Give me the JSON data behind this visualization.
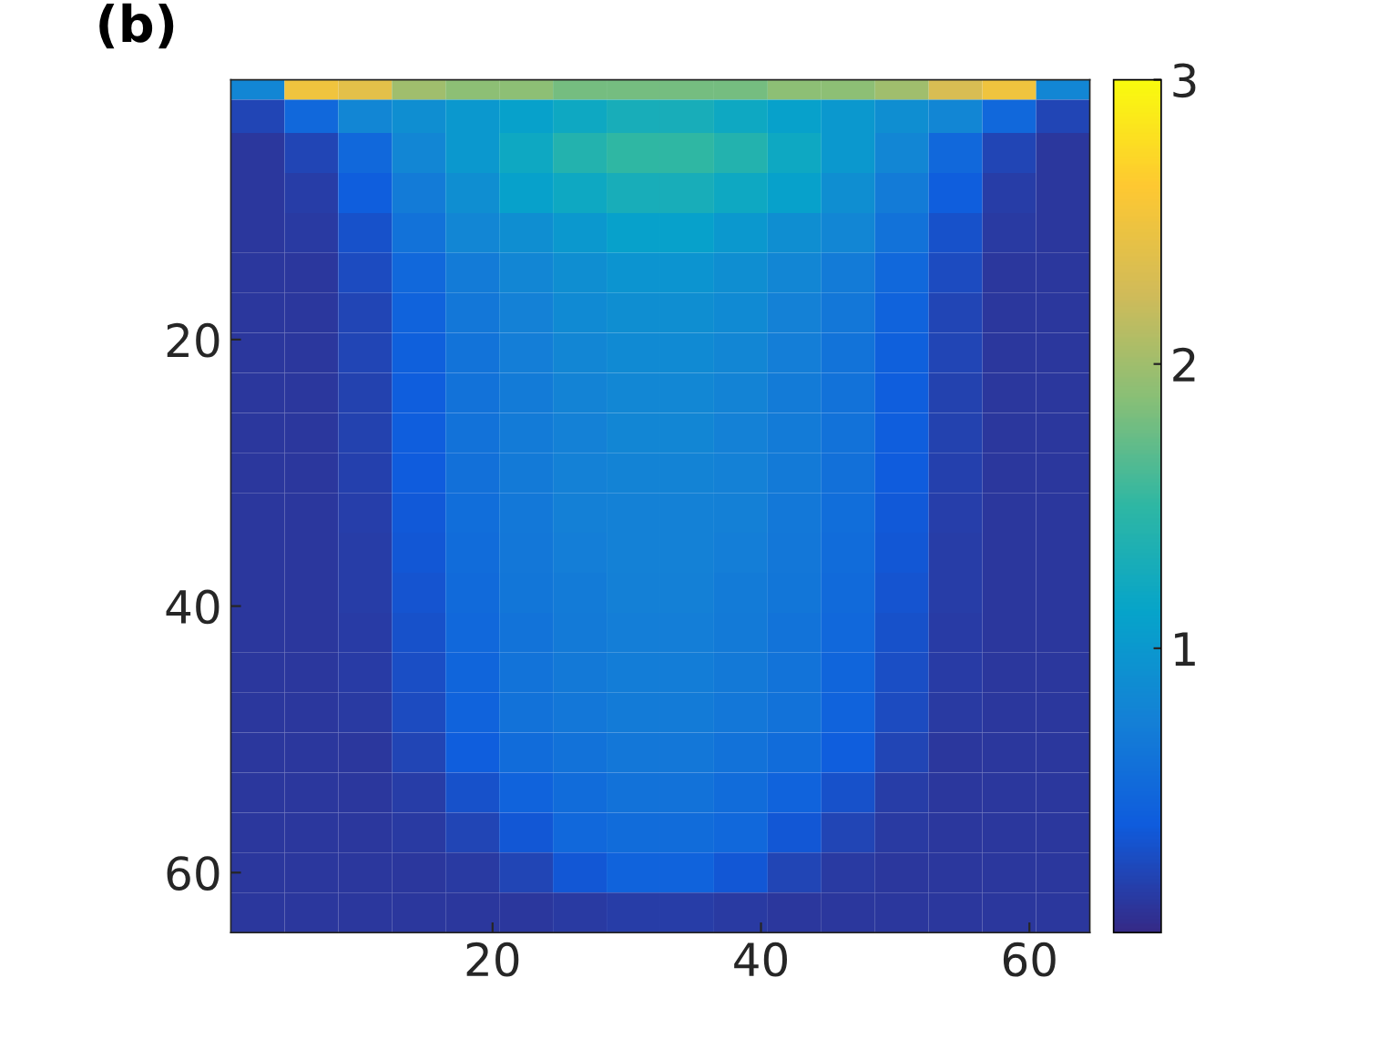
{
  "chart_data": {
    "type": "heatmap",
    "title": "(b)",
    "x": [
      2.5,
      6.5,
      10.5,
      14.5,
      18.5,
      22.5,
      26.5,
      30.5,
      34.5,
      38.5,
      42.5,
      46.5,
      50.5,
      54.5,
      58.5,
      62.5
    ],
    "y": [
      1,
      3,
      6,
      9,
      12,
      15,
      18,
      21,
      24,
      27,
      30,
      33,
      36,
      39,
      42,
      45,
      48,
      51,
      54,
      57,
      60,
      63
    ],
    "cells": [
      [
        0.8,
        2.5,
        2.4,
        2.0,
        1.9,
        1.9,
        1.8,
        1.8,
        1.8,
        1.8,
        1.9,
        1.9,
        2.0,
        2.3,
        2.5,
        0.8
      ],
      [
        0.2,
        0.5,
        0.8,
        0.9,
        1.0,
        1.1,
        1.2,
        1.3,
        1.3,
        1.2,
        1.1,
        1.0,
        0.9,
        0.8,
        0.5,
        0.2
      ],
      [
        0.1,
        0.2,
        0.5,
        0.8,
        1.0,
        1.2,
        1.4,
        1.5,
        1.5,
        1.4,
        1.2,
        1.0,
        0.8,
        0.5,
        0.2,
        0.1
      ],
      [
        0.1,
        0.15,
        0.4,
        0.7,
        0.9,
        1.1,
        1.2,
        1.3,
        1.3,
        1.2,
        1.1,
        0.9,
        0.7,
        0.4,
        0.15,
        0.1
      ],
      [
        0.1,
        0.12,
        0.3,
        0.6,
        0.8,
        0.9,
        1.0,
        1.1,
        1.1,
        1.0,
        0.9,
        0.8,
        0.6,
        0.3,
        0.12,
        0.1
      ],
      [
        0.1,
        0.1,
        0.25,
        0.5,
        0.7,
        0.8,
        0.9,
        0.95,
        0.95,
        0.9,
        0.8,
        0.7,
        0.5,
        0.25,
        0.1,
        0.1
      ],
      [
        0.1,
        0.1,
        0.2,
        0.45,
        0.65,
        0.75,
        0.85,
        0.9,
        0.9,
        0.85,
        0.75,
        0.65,
        0.45,
        0.2,
        0.1,
        0.1
      ],
      [
        0.1,
        0.1,
        0.2,
        0.42,
        0.62,
        0.72,
        0.8,
        0.85,
        0.85,
        0.8,
        0.72,
        0.62,
        0.42,
        0.2,
        0.1,
        0.1
      ],
      [
        0.1,
        0.1,
        0.18,
        0.4,
        0.6,
        0.7,
        0.78,
        0.82,
        0.82,
        0.78,
        0.7,
        0.6,
        0.4,
        0.18,
        0.1,
        0.1
      ],
      [
        0.1,
        0.1,
        0.18,
        0.4,
        0.6,
        0.7,
        0.76,
        0.8,
        0.8,
        0.76,
        0.7,
        0.6,
        0.4,
        0.18,
        0.1,
        0.1
      ],
      [
        0.1,
        0.1,
        0.17,
        0.38,
        0.58,
        0.68,
        0.75,
        0.78,
        0.78,
        0.75,
        0.68,
        0.58,
        0.38,
        0.17,
        0.1,
        0.1
      ],
      [
        0.1,
        0.1,
        0.16,
        0.36,
        0.56,
        0.66,
        0.74,
        0.76,
        0.76,
        0.74,
        0.66,
        0.56,
        0.36,
        0.16,
        0.1,
        0.1
      ],
      [
        0.1,
        0.1,
        0.15,
        0.34,
        0.54,
        0.65,
        0.72,
        0.75,
        0.75,
        0.72,
        0.65,
        0.54,
        0.34,
        0.15,
        0.1,
        0.1
      ],
      [
        0.1,
        0.1,
        0.15,
        0.32,
        0.52,
        0.64,
        0.7,
        0.74,
        0.74,
        0.7,
        0.64,
        0.52,
        0.32,
        0.15,
        0.1,
        0.1
      ],
      [
        0.1,
        0.1,
        0.14,
        0.3,
        0.5,
        0.62,
        0.69,
        0.72,
        0.72,
        0.69,
        0.62,
        0.5,
        0.3,
        0.14,
        0.1,
        0.1
      ],
      [
        0.1,
        0.1,
        0.13,
        0.28,
        0.48,
        0.61,
        0.67,
        0.71,
        0.71,
        0.67,
        0.61,
        0.48,
        0.28,
        0.13,
        0.1,
        0.1
      ],
      [
        0.1,
        0.1,
        0.12,
        0.25,
        0.45,
        0.6,
        0.65,
        0.7,
        0.7,
        0.65,
        0.6,
        0.45,
        0.25,
        0.12,
        0.1,
        0.1
      ],
      [
        0.1,
        0.1,
        0.1,
        0.2,
        0.4,
        0.55,
        0.6,
        0.65,
        0.65,
        0.6,
        0.55,
        0.4,
        0.2,
        0.1,
        0.1,
        0.1
      ],
      [
        0.1,
        0.1,
        0.1,
        0.15,
        0.3,
        0.45,
        0.55,
        0.6,
        0.6,
        0.55,
        0.45,
        0.3,
        0.15,
        0.1,
        0.1,
        0.1
      ],
      [
        0.1,
        0.1,
        0.1,
        0.12,
        0.2,
        0.35,
        0.5,
        0.55,
        0.55,
        0.5,
        0.35,
        0.2,
        0.12,
        0.1,
        0.1,
        0.1
      ],
      [
        0.1,
        0.1,
        0.1,
        0.1,
        0.12,
        0.2,
        0.35,
        0.45,
        0.45,
        0.35,
        0.2,
        0.12,
        0.1,
        0.1,
        0.1,
        0.1
      ],
      [
        0.1,
        0.1,
        0.1,
        0.1,
        0.1,
        0.1,
        0.12,
        0.15,
        0.15,
        0.12,
        0.1,
        0.1,
        0.1,
        0.1,
        0.1,
        0.1
      ]
    ],
    "colors": [
      "#352a87",
      "#0f5cdd",
      "#1481d6",
      "#06a4ca",
      "#2eb7a4",
      "#87bf77",
      "#d1bb59",
      "#fec832",
      "#f9fb0e"
    ],
    "clim": [
      0,
      3
    ],
    "cticks": [
      1,
      2,
      3
    ],
    "xlim": [
      0.5,
      64.5
    ],
    "ylim": [
      64.5,
      0.5
    ],
    "xticks": [
      20,
      40,
      60
    ],
    "yticks": [
      20,
      40,
      60
    ]
  }
}
